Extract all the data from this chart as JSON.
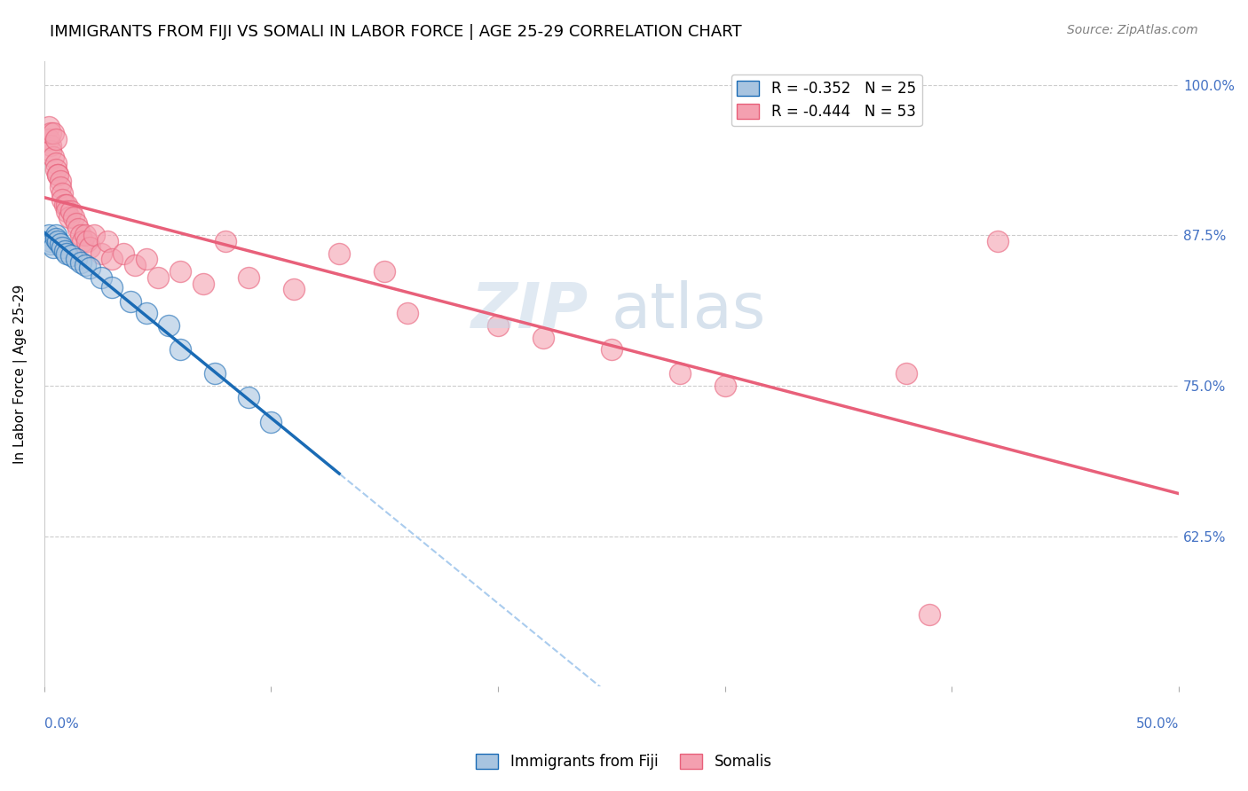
{
  "title": "IMMIGRANTS FROM FIJI VS SOMALI IN LABOR FORCE | AGE 25-29 CORRELATION CHART",
  "source": "Source: ZipAtlas.com",
  "ylabel": "In Labor Force | Age 25-29",
  "xlim": [
    0.0,
    0.5
  ],
  "ylim": [
    0.5,
    1.02
  ],
  "yticks": [
    0.625,
    0.75,
    0.875,
    1.0
  ],
  "ytick_labels": [
    "62.5%",
    "75.0%",
    "87.5%",
    "100.0%"
  ],
  "fiji_R": "-0.352",
  "fiji_N": "25",
  "somali_R": "-0.444",
  "somali_N": "53",
  "fiji_color": "#a8c4e0",
  "somali_color": "#f4a0b0",
  "fiji_line_color": "#1a6bb5",
  "somali_line_color": "#e8607a",
  "fiji_x": [
    0.002,
    0.003,
    0.003,
    0.004,
    0.005,
    0.005,
    0.006,
    0.007,
    0.008,
    0.009,
    0.01,
    0.012,
    0.014,
    0.016,
    0.018,
    0.02,
    0.025,
    0.03,
    0.038,
    0.045,
    0.055,
    0.06,
    0.075,
    0.09,
    0.1
  ],
  "fiji_y": [
    0.875,
    0.87,
    0.868,
    0.865,
    0.875,
    0.872,
    0.87,
    0.868,
    0.865,
    0.862,
    0.86,
    0.858,
    0.855,
    0.852,
    0.85,
    0.848,
    0.84,
    0.832,
    0.82,
    0.81,
    0.8,
    0.78,
    0.76,
    0.74,
    0.72
  ],
  "somali_x": [
    0.002,
    0.002,
    0.003,
    0.003,
    0.004,
    0.005,
    0.005,
    0.006,
    0.006,
    0.007,
    0.007,
    0.008,
    0.008,
    0.009,
    0.01,
    0.01,
    0.011,
    0.012,
    0.013,
    0.014,
    0.015,
    0.016,
    0.017,
    0.018,
    0.019,
    0.02,
    0.022,
    0.025,
    0.028,
    0.03,
    0.035,
    0.04,
    0.045,
    0.05,
    0.06,
    0.07,
    0.08,
    0.09,
    0.11,
    0.13,
    0.15,
    0.16,
    0.2,
    0.22,
    0.25,
    0.28,
    0.3,
    0.38,
    0.42,
    0.003,
    0.004,
    0.39,
    0.005
  ],
  "somali_y": [
    0.965,
    0.955,
    0.95,
    0.945,
    0.94,
    0.935,
    0.93,
    0.925,
    0.925,
    0.92,
    0.915,
    0.91,
    0.905,
    0.9,
    0.9,
    0.895,
    0.89,
    0.895,
    0.89,
    0.885,
    0.88,
    0.875,
    0.87,
    0.875,
    0.87,
    0.865,
    0.875,
    0.86,
    0.87,
    0.855,
    0.86,
    0.85,
    0.855,
    0.84,
    0.845,
    0.835,
    0.87,
    0.84,
    0.83,
    0.86,
    0.845,
    0.81,
    0.8,
    0.79,
    0.78,
    0.76,
    0.75,
    0.76,
    0.87,
    0.96,
    0.96,
    0.56,
    0.955
  ],
  "background_color": "#ffffff",
  "grid_color": "#cccccc",
  "title_fontsize": 13,
  "source_fontsize": 10,
  "axis_label_fontsize": 11,
  "tick_fontsize": 11,
  "legend_fontsize": 12
}
